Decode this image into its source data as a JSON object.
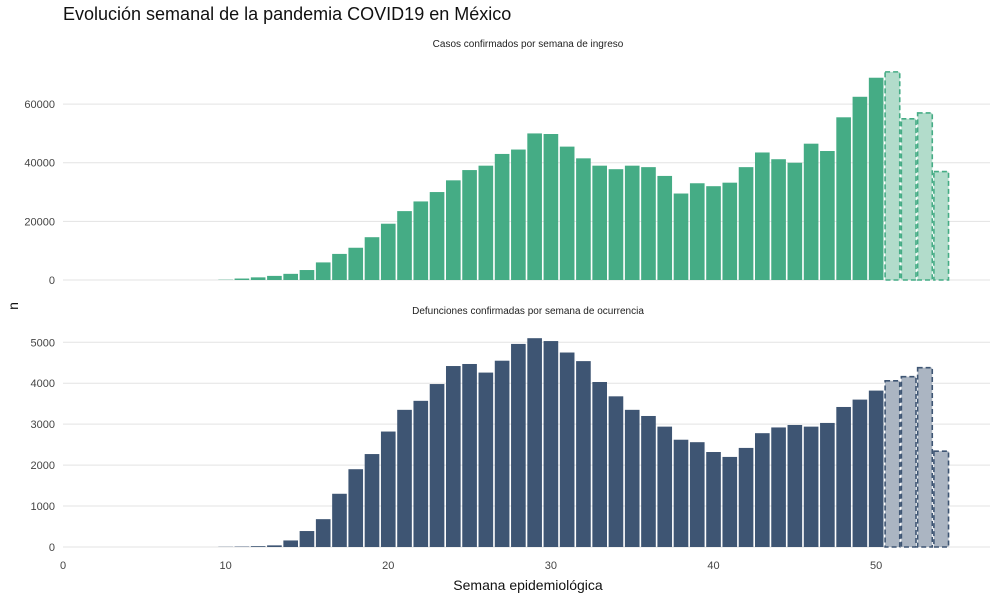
{
  "title": "Evolución semanal de la pandemia COVID19 en México",
  "chart_data": {
    "type": "bar",
    "xlabel": "Semana epidemiológica",
    "ylabel": "n",
    "xlim": [
      0,
      57
    ],
    "x_ticks": [
      0,
      10,
      20,
      30,
      40,
      50
    ],
    "colors": {
      "cases": "#45AC85",
      "cases_provisional": "#B2DCCB",
      "cases_provisional_border": "#45AC85",
      "deaths": "#3E5573",
      "deaths_provisional": "#ABB5C2",
      "deaths_provisional_border": "#3E5573"
    },
    "panels": [
      {
        "label": "Casos confirmados por semana de ingreso",
        "series": "cases",
        "ylim": [
          0,
          73000
        ],
        "y_ticks": [
          0,
          20000,
          40000,
          60000
        ],
        "weeks": [
          10,
          11,
          12,
          13,
          14,
          15,
          16,
          17,
          18,
          19,
          20,
          21,
          22,
          23,
          24,
          25,
          26,
          27,
          28,
          29,
          30,
          31,
          32,
          33,
          34,
          35,
          36,
          37,
          38,
          39,
          40,
          41,
          42,
          43,
          44,
          45,
          46,
          47,
          48,
          49,
          50,
          51,
          52,
          53,
          54
        ],
        "values": [
          100,
          500,
          900,
          1400,
          2100,
          3400,
          6000,
          8900,
          11000,
          14600,
          19200,
          23500,
          26800,
          30000,
          34000,
          37500,
          39000,
          43000,
          44500,
          50000,
          49800,
          45500,
          41500,
          39000,
          37800,
          39000,
          38500,
          35500,
          29500,
          33000,
          32000,
          33200,
          38500,
          43500,
          41200,
          40000,
          46500,
          44000,
          55500,
          62500,
          69000,
          71000,
          55000,
          57000,
          37000
        ],
        "provisional_weeks": [
          51,
          52,
          53,
          54
        ]
      },
      {
        "label": "Defunciones confirmadas por semana de ocurrencia",
        "series": "deaths",
        "ylim": [
          0,
          5300
        ],
        "y_ticks": [
          0,
          1000,
          2000,
          3000,
          4000,
          5000
        ],
        "weeks": [
          10,
          11,
          12,
          13,
          14,
          15,
          16,
          17,
          18,
          19,
          20,
          21,
          22,
          23,
          24,
          25,
          26,
          27,
          28,
          29,
          30,
          31,
          32,
          33,
          34,
          35,
          36,
          37,
          38,
          39,
          40,
          41,
          42,
          43,
          44,
          45,
          46,
          47,
          48,
          49,
          50,
          51,
          52,
          53,
          54
        ],
        "values": [
          5,
          10,
          20,
          40,
          160,
          390,
          680,
          1300,
          1900,
          2270,
          2820,
          3350,
          3570,
          3980,
          4420,
          4470,
          4260,
          4550,
          4960,
          5100,
          5030,
          4750,
          4540,
          4030,
          3680,
          3350,
          3200,
          2940,
          2620,
          2560,
          2320,
          2200,
          2420,
          2780,
          2920,
          2980,
          2940,
          3030,
          3420,
          3600,
          3820,
          4060,
          4160,
          4380,
          2340
        ],
        "provisional_weeks": [
          51,
          52,
          53,
          54
        ]
      }
    ]
  }
}
